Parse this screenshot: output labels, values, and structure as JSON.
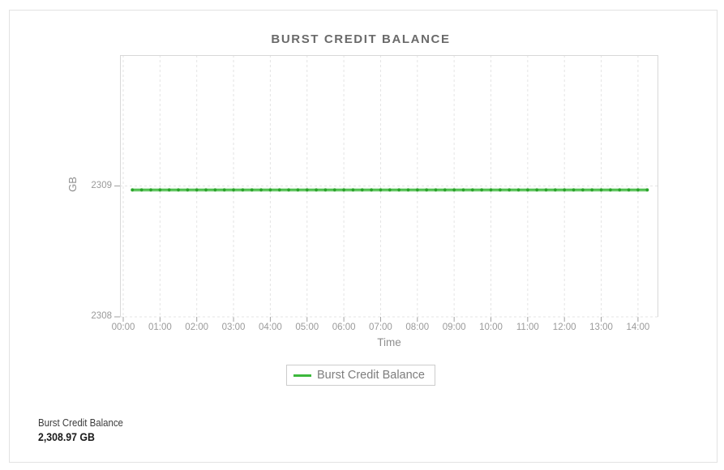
{
  "chart_data": {
    "type": "line",
    "title": "BURST CREDIT BALANCE",
    "xlabel": "Time",
    "ylabel": "GB",
    "x_tick_labels": [
      "00:00",
      "01:00",
      "02:00",
      "03:00",
      "04:00",
      "05:00",
      "06:00",
      "07:00",
      "08:00",
      "09:00",
      "10:00",
      "11:00",
      "12:00",
      "13:00",
      "14:00"
    ],
    "y_tick_labels": [
      "2308",
      "2309"
    ],
    "ylim": [
      2308,
      2310
    ],
    "grid": {
      "style": "dashed",
      "color": "#e4e4e4"
    },
    "axis_color": "#d8d8d8",
    "tick_color": "#a0a0a0",
    "series": [
      {
        "name": "Burst Credit Balance",
        "value": 2308.97,
        "start": "00:15",
        "end": "14:15",
        "interval_minutes": 15,
        "color": "#3cb83c",
        "marker_color": "#2aa22a"
      }
    ],
    "legend": {
      "position": "bottom-center",
      "labels": [
        "Burst Credit Balance"
      ]
    }
  },
  "summary": {
    "label": "Burst Credit Balance",
    "value": "2,308.97 GB"
  }
}
